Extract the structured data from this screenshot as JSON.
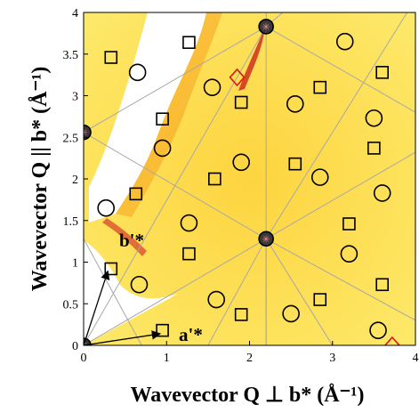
{
  "chart_data": {
    "type": "scatter",
    "xlabel": "Wavevector Q ⊥ b* (Å⁻¹)",
    "ylabel": "Wavevector Q || b* (Å⁻¹)",
    "xlim": [
      0,
      4
    ],
    "ylim": [
      0,
      4
    ],
    "xticks": [
      "0",
      "1",
      "2",
      "3",
      "4"
    ],
    "yticks": [
      "0",
      "0.5",
      "1",
      "1.5",
      "2",
      "2.5",
      "3",
      "3.5",
      "4"
    ],
    "annotations": [
      "b'*",
      "a'*"
    ],
    "colors": {
      "background": "#fde96a",
      "marker": "#000000",
      "highlight": "#e01414",
      "grid": "#a8a8a8"
    },
    "bragg_peaks": [
      {
        "x": 0.0,
        "y": 0.0
      },
      {
        "x": 2.2,
        "y": 1.28
      },
      {
        "x": 0.0,
        "y": 2.56
      },
      {
        "x": 2.2,
        "y": 3.83
      }
    ],
    "circles": [
      {
        "x": 0.67,
        "y": 0.73
      },
      {
        "x": 0.27,
        "y": 1.65
      },
      {
        "x": 0.95,
        "y": 2.37
      },
      {
        "x": 1.27,
        "y": 1.47
      },
      {
        "x": 1.6,
        "y": 0.55
      },
      {
        "x": 1.55,
        "y": 3.1
      },
      {
        "x": 0.65,
        "y": 3.28
      },
      {
        "x": 1.9,
        "y": 2.2
      },
      {
        "x": 2.55,
        "y": 2.9
      },
      {
        "x": 2.5,
        "y": 0.38
      },
      {
        "x": 2.85,
        "y": 2.02
      },
      {
        "x": 3.15,
        "y": 3.65
      },
      {
        "x": 3.2,
        "y": 1.1
      },
      {
        "x": 3.5,
        "y": 2.73
      },
      {
        "x": 3.6,
        "y": 1.83
      },
      {
        "x": 3.55,
        "y": 0.18
      }
    ],
    "squares": [
      {
        "x": 0.33,
        "y": 0.92
      },
      {
        "x": 0.63,
        "y": 1.82
      },
      {
        "x": 0.95,
        "y": 2.72
      },
      {
        "x": 0.95,
        "y": 0.18
      },
      {
        "x": 1.27,
        "y": 3.64
      },
      {
        "x": 1.27,
        "y": 1.1
      },
      {
        "x": 1.58,
        "y": 2.0
      },
      {
        "x": 1.9,
        "y": 2.92
      },
      {
        "x": 1.9,
        "y": 0.37
      },
      {
        "x": 2.55,
        "y": 2.18
      },
      {
        "x": 2.85,
        "y": 3.1
      },
      {
        "x": 2.85,
        "y": 0.55
      },
      {
        "x": 3.2,
        "y": 1.46
      },
      {
        "x": 3.5,
        "y": 2.37
      },
      {
        "x": 3.6,
        "y": 3.28
      },
      {
        "x": 3.6,
        "y": 0.73
      },
      {
        "x": 0.33,
        "y": 3.46
      }
    ],
    "diamonds": [
      {
        "x": 1.85,
        "y": 3.22
      },
      {
        "x": 3.72,
        "y": 0.0
      }
    ],
    "grid_lines": [
      [
        [
          0,
          0
        ],
        [
          2.2,
          3.83
        ]
      ],
      [
        [
          0,
          2.56
        ],
        [
          2.2,
          1.28
        ]
      ],
      [
        [
          2.2,
          1.28
        ],
        [
          4.0,
          2.32
        ]
      ],
      [
        [
          0,
          2.56
        ],
        [
          2.2,
          3.83
        ]
      ],
      [
        [
          2.2,
          3.83
        ],
        [
          2.4,
          4.0
        ]
      ],
      [
        [
          0,
          0
        ],
        [
          0,
          4
        ]
      ],
      [
        [
          2.2,
          0
        ],
        [
          2.2,
          4
        ]
      ],
      [
        [
          0,
          0
        ],
        [
          2.2,
          1.28
        ]
      ],
      [
        [
          2.2,
          1.28
        ],
        [
          2.2,
          0
        ]
      ],
      [
        [
          1.5,
          0
        ],
        [
          2.2,
          1.28
        ]
      ],
      [
        [
          2.2,
          1.28
        ],
        [
          3.0,
          0
        ]
      ],
      [
        [
          2.2,
          1.28
        ],
        [
          4.0,
          0.3
        ]
      ],
      [
        [
          2.2,
          3.83
        ],
        [
          4.0,
          2.8
        ]
      ],
      [
        [
          2.2,
          1.28
        ],
        [
          3.9,
          4.0
        ]
      ],
      [
        [
          0.0,
          1.28
        ],
        [
          0.7,
          0.0
        ]
      ]
    ],
    "arrows": [
      {
        "from": [
          0,
          0
        ],
        "to": [
          0.33,
          0.92
        ]
      },
      {
        "from": [
          0,
          0
        ],
        "to": [
          0.95,
          0.18
        ]
      }
    ]
  }
}
